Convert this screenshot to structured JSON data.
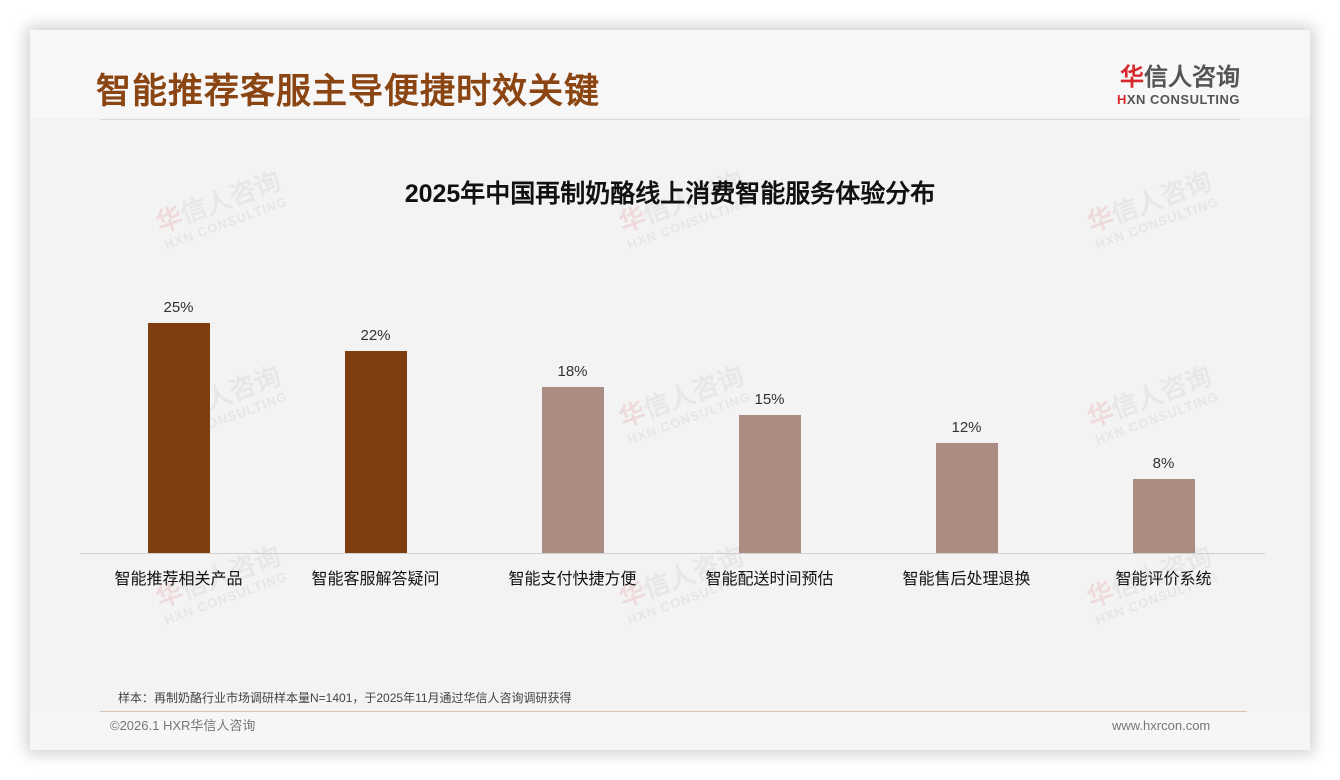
{
  "header": {
    "title": "智能推荐客服主导便捷时效关键",
    "logo": {
      "cn_accent": "华",
      "cn_rest": "信人咨询",
      "en_accent": "H",
      "en_rest": "XN CONSULTING"
    }
  },
  "colors": {
    "title": "#8a4512",
    "bar_highlight": "#7f3e10",
    "bar_normal": "#ab8c82",
    "logo_accent": "#d7282e"
  },
  "watermark": {
    "cn_accent": "华",
    "cn_rest": "信人咨询",
    "en": "HXN CONSULTING"
  },
  "chart_data": {
    "type": "bar",
    "title": "2025年中国再制奶酪线上消费智能服务体验分布",
    "xlabel": "",
    "ylabel": "",
    "ylim": [
      0,
      25
    ],
    "grid": false,
    "legend": null,
    "categories": [
      "智能推荐相关产品",
      "智能客服解答疑问",
      "智能支付快捷方便",
      "智能配送时间预估",
      "智能售后处理退换",
      "智能评价系统"
    ],
    "values": [
      25,
      22,
      18,
      15,
      12,
      8
    ],
    "value_labels": [
      "25%",
      "22%",
      "18%",
      "15%",
      "12%",
      "8%"
    ],
    "highlighted": [
      true,
      true,
      false,
      false,
      false,
      false
    ],
    "unit": "%"
  },
  "footer": {
    "note": "样本：再制奶酪行业市场调研样本量N=1401，于2025年11月通过华信人咨询调研获得",
    "copyright": "©2026.1 HXR华信人咨询",
    "website": "www.hxrcon.com"
  }
}
